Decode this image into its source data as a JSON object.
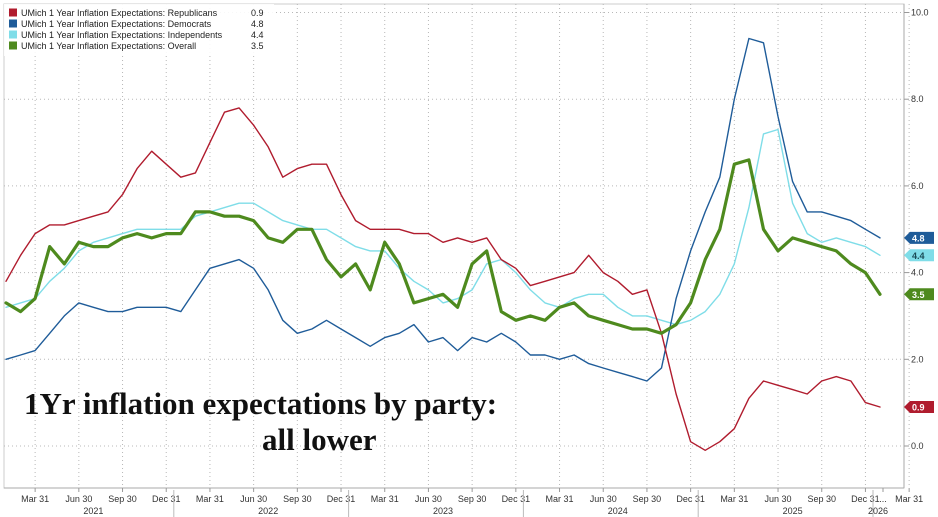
{
  "chart_data": {
    "type": "line",
    "ylim": [
      -1,
      10
    ],
    "yticks": [
      "0.0",
      "2.0",
      "4.0",
      "6.0",
      "8.0",
      "10.0"
    ],
    "xticks": [
      "Mar 31",
      "Jun 30",
      "Sep 30",
      "Dec 31",
      "Mar 31",
      "Jun 30",
      "Sep 30",
      "Dec 31",
      "Mar 31",
      "Jun 30",
      "Sep 30",
      "Dec 31",
      "Mar 31",
      "Jun 30",
      "Sep 30",
      "Dec 31",
      "Mar 31",
      "Jun 30",
      "Sep 30",
      "Dec 31",
      "Mar 31",
      "Jun 30",
      "Sep 30",
      "Dec 31",
      "..."
    ],
    "years": [
      "2021",
      "2022",
      "2023",
      "2024",
      "2025",
      "2026"
    ],
    "grid": true,
    "legend_position": "top-left",
    "annotation": [
      "1Yr inflation expectations by party:",
      "all lower"
    ],
    "x": [
      "2021-01",
      "2021-02",
      "2021-03",
      "2021-04",
      "2021-05",
      "2021-06",
      "2021-07",
      "2021-08",
      "2021-09",
      "2021-10",
      "2021-11",
      "2021-12",
      "2022-01",
      "2022-02",
      "2022-03",
      "2022-04",
      "2022-05",
      "2022-06",
      "2022-07",
      "2022-08",
      "2022-09",
      "2022-10",
      "2022-11",
      "2022-12",
      "2023-01",
      "2023-02",
      "2023-03",
      "2023-04",
      "2023-05",
      "2023-06",
      "2023-07",
      "2023-08",
      "2023-09",
      "2023-10",
      "2023-11",
      "2023-12",
      "2024-01",
      "2024-02",
      "2024-03",
      "2024-04",
      "2024-05",
      "2024-06",
      "2024-07",
      "2024-08",
      "2024-09",
      "2024-10",
      "2024-11",
      "2024-12",
      "2025-01",
      "2025-02",
      "2025-03",
      "2025-04",
      "2025-05",
      "2025-06",
      "2025-07",
      "2025-08",
      "2025-09",
      "2025-10",
      "2025-11",
      "2025-12",
      "2026-01"
    ],
    "series": [
      {
        "name": "UMich 1 Year Inflation Expectations: Republicans",
        "legend_value": "0.9",
        "end_label": "0.9",
        "color": "#b01c2e",
        "values": [
          3.8,
          4.4,
          4.9,
          5.1,
          5.1,
          5.2,
          5.3,
          5.4,
          5.8,
          6.4,
          6.8,
          6.5,
          6.2,
          6.3,
          7.0,
          7.7,
          7.8,
          7.4,
          6.9,
          6.2,
          6.4,
          6.5,
          6.5,
          5.8,
          5.2,
          5.0,
          5.0,
          5.0,
          4.9,
          4.9,
          4.7,
          4.8,
          4.7,
          4.8,
          4.3,
          4.1,
          3.7,
          3.8,
          3.9,
          4.0,
          4.4,
          4.0,
          3.8,
          3.5,
          3.6,
          2.6,
          1.2,
          0.1,
          -0.1,
          0.1,
          0.4,
          1.1,
          1.5,
          1.4,
          1.3,
          1.2,
          1.5,
          1.6,
          1.5,
          1.0,
          0.9
        ]
      },
      {
        "name": "UMich 1 Year Inflation Expectations: Democrats",
        "legend_value": "4.8",
        "end_label": "4.8",
        "color": "#1f5c99",
        "values": [
          2.0,
          2.1,
          2.2,
          2.6,
          3.0,
          3.3,
          3.2,
          3.1,
          3.1,
          3.2,
          3.2,
          3.2,
          3.1,
          3.6,
          4.1,
          4.2,
          4.3,
          4.1,
          3.6,
          2.9,
          2.6,
          2.7,
          2.9,
          2.7,
          2.5,
          2.3,
          2.5,
          2.6,
          2.8,
          2.4,
          2.5,
          2.2,
          2.5,
          2.4,
          2.6,
          2.4,
          2.1,
          2.1,
          2.0,
          2.1,
          1.9,
          1.8,
          1.7,
          1.6,
          1.5,
          1.8,
          3.4,
          4.5,
          5.4,
          6.2,
          8.0,
          9.4,
          9.3,
          7.6,
          6.1,
          5.4,
          5.4,
          5.3,
          5.2,
          5.0,
          4.8
        ]
      },
      {
        "name": "UMich 1 Year Inflation Expectations: Independents",
        "legend_value": "4.4",
        "end_label": "4.4",
        "color": "#7fdde8",
        "values": [
          3.2,
          3.3,
          3.4,
          3.8,
          4.1,
          4.5,
          4.7,
          4.8,
          4.9,
          5.0,
          5.0,
          5.0,
          5.0,
          5.3,
          5.4,
          5.5,
          5.6,
          5.6,
          5.4,
          5.2,
          5.1,
          5.0,
          5.0,
          4.8,
          4.6,
          4.5,
          4.5,
          4.1,
          3.8,
          3.6,
          3.3,
          3.4,
          3.6,
          4.2,
          4.3,
          4.0,
          3.6,
          3.3,
          3.2,
          3.4,
          3.5,
          3.5,
          3.2,
          3.0,
          3.0,
          2.9,
          2.8,
          2.9,
          3.1,
          3.5,
          4.2,
          5.5,
          7.2,
          7.3,
          5.6,
          4.9,
          4.7,
          4.8,
          4.7,
          4.6,
          4.4
        ]
      },
      {
        "name": "UMich 1 Year Inflation Expectations: Overall",
        "legend_value": "3.5",
        "end_label": "3.5",
        "color": "#4e8a1e",
        "values": [
          3.3,
          3.1,
          3.4,
          4.6,
          4.2,
          4.7,
          4.6,
          4.6,
          4.8,
          4.9,
          4.8,
          4.9,
          4.9,
          5.4,
          5.4,
          5.3,
          5.3,
          5.2,
          4.8,
          4.7,
          5.0,
          5.0,
          4.3,
          3.9,
          4.2,
          3.6,
          4.7,
          4.2,
          3.3,
          3.4,
          3.5,
          3.2,
          4.2,
          4.5,
          3.1,
          2.9,
          3.0,
          2.9,
          3.2,
          3.3,
          3.0,
          2.9,
          2.8,
          2.7,
          2.7,
          2.6,
          2.8,
          3.3,
          4.3,
          5.0,
          6.5,
          6.6,
          5.0,
          4.5,
          4.8,
          4.7,
          4.6,
          4.5,
          4.2,
          4.0,
          3.5
        ]
      }
    ]
  }
}
